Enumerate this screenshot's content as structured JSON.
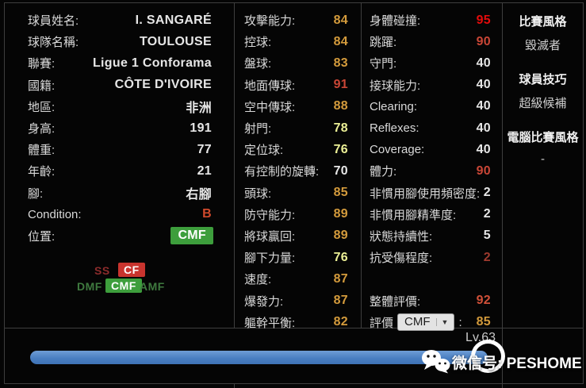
{
  "colors": {
    "white": "#e6e6e6",
    "orange": "#d49b3c",
    "yellow": "#ecf096",
    "red": "#c94636",
    "bright_red": "#e30b0b",
    "dark_red": "#9e3a2e",
    "overall": "#d05038",
    "condition": "#d0492c",
    "badge_green": "#3d9e3c",
    "badge_red": "#c8342e",
    "bar_blue": "#4a7fc2"
  },
  "left_panel": {
    "rows": [
      {
        "label": "球員姓名:",
        "value": "I. SANGARÉ",
        "c": "white"
      },
      {
        "label": "球隊名稱:",
        "value": "TOULOUSE",
        "c": "white"
      },
      {
        "label": "聯賽:",
        "value": "Ligue 1 Conforama",
        "c": "white"
      },
      {
        "label": "國籍:",
        "value": "CÔTE D'IVOIRE",
        "c": "white"
      },
      {
        "label": "地區:",
        "value": "非洲",
        "c": "white"
      },
      {
        "label": "身高:",
        "value": "191",
        "c": "white"
      },
      {
        "label": "體重:",
        "value": "77",
        "c": "white"
      },
      {
        "label": "年齡:",
        "value": "21",
        "c": "white"
      },
      {
        "label": "腳:",
        "value": "右腳",
        "c": "white"
      },
      {
        "label": "Condition:",
        "value": "B",
        "c": "condition"
      },
      {
        "label": "位置:",
        "value": "CMF",
        "c": "badge_green"
      }
    ],
    "position_diagram": {
      "ss": "SS",
      "cf": "CF",
      "dmf": "DMF",
      "cmf": "CMF",
      "amf": "AMF"
    }
  },
  "attack_panel": {
    "rows": [
      {
        "label": "攻擊能力:",
        "value": "84",
        "c": "orange"
      },
      {
        "label": "控球:",
        "value": "84",
        "c": "orange"
      },
      {
        "label": "盤球:",
        "value": "83",
        "c": "orange"
      },
      {
        "label": "地面傳球:",
        "value": "91",
        "c": "red"
      },
      {
        "label": "空中傳球:",
        "value": "88",
        "c": "orange"
      },
      {
        "label": "射門:",
        "value": "78",
        "c": "yellow"
      },
      {
        "label": "定位球:",
        "value": "76",
        "c": "yellow"
      },
      {
        "label": "有控制的旋轉:",
        "value": "70",
        "c": "white"
      },
      {
        "label": "頭球:",
        "value": "85",
        "c": "orange"
      },
      {
        "label": "防守能力:",
        "value": "89",
        "c": "orange"
      },
      {
        "label": "將球贏回:",
        "value": "89",
        "c": "orange"
      },
      {
        "label": "腳下力量:",
        "value": "76",
        "c": "yellow"
      },
      {
        "label": "速度:",
        "value": "87",
        "c": "orange"
      },
      {
        "label": "爆發力:",
        "value": "87",
        "c": "orange"
      },
      {
        "label": "軀幹平衡:",
        "value": "82",
        "c": "orange"
      }
    ]
  },
  "other_panel": {
    "rows": [
      {
        "label": "身體碰撞:",
        "value": "95",
        "c": "bright_red"
      },
      {
        "label": "跳躍:",
        "value": "90",
        "c": "red"
      },
      {
        "label": "守門:",
        "value": "40",
        "c": "white"
      },
      {
        "label": "接球能力:",
        "value": "40",
        "c": "white"
      },
      {
        "label": "Clearing:",
        "value": "40",
        "c": "white"
      },
      {
        "label": "Reflexes:",
        "value": "40",
        "c": "white"
      },
      {
        "label": "Coverage:",
        "value": "40",
        "c": "white"
      },
      {
        "label": "體力:",
        "value": "90",
        "c": "red"
      },
      {
        "label": "非慣用腳使用頻密度:",
        "value": "2",
        "c": "white"
      },
      {
        "label": "非慣用腳精準度:",
        "value": "2",
        "c": "white"
      },
      {
        "label": "狀態持續性:",
        "value": "5",
        "c": "white"
      },
      {
        "label": "抗受傷程度:",
        "value": "2",
        "c": "dark_red"
      },
      {
        "label": "",
        "value": "",
        "c": "white"
      },
      {
        "label": "整體評價:",
        "value": "92",
        "c": "overall"
      }
    ],
    "rating": {
      "label": "評價",
      "dropdown_value": "CMF",
      "caret": "▼",
      "colon": ":",
      "value": "85",
      "c": "orange"
    }
  },
  "style_panel": {
    "sections": [
      {
        "title": "比賽風格",
        "value": "毀滅者"
      },
      {
        "title": "球員技巧",
        "value": "超級候補"
      },
      {
        "title": "電腦比賽風格",
        "value": "-"
      }
    ]
  },
  "footer": {
    "level": "Lv.63",
    "progress_percent": 97,
    "watermark_text": "微信号: PESHOME"
  }
}
